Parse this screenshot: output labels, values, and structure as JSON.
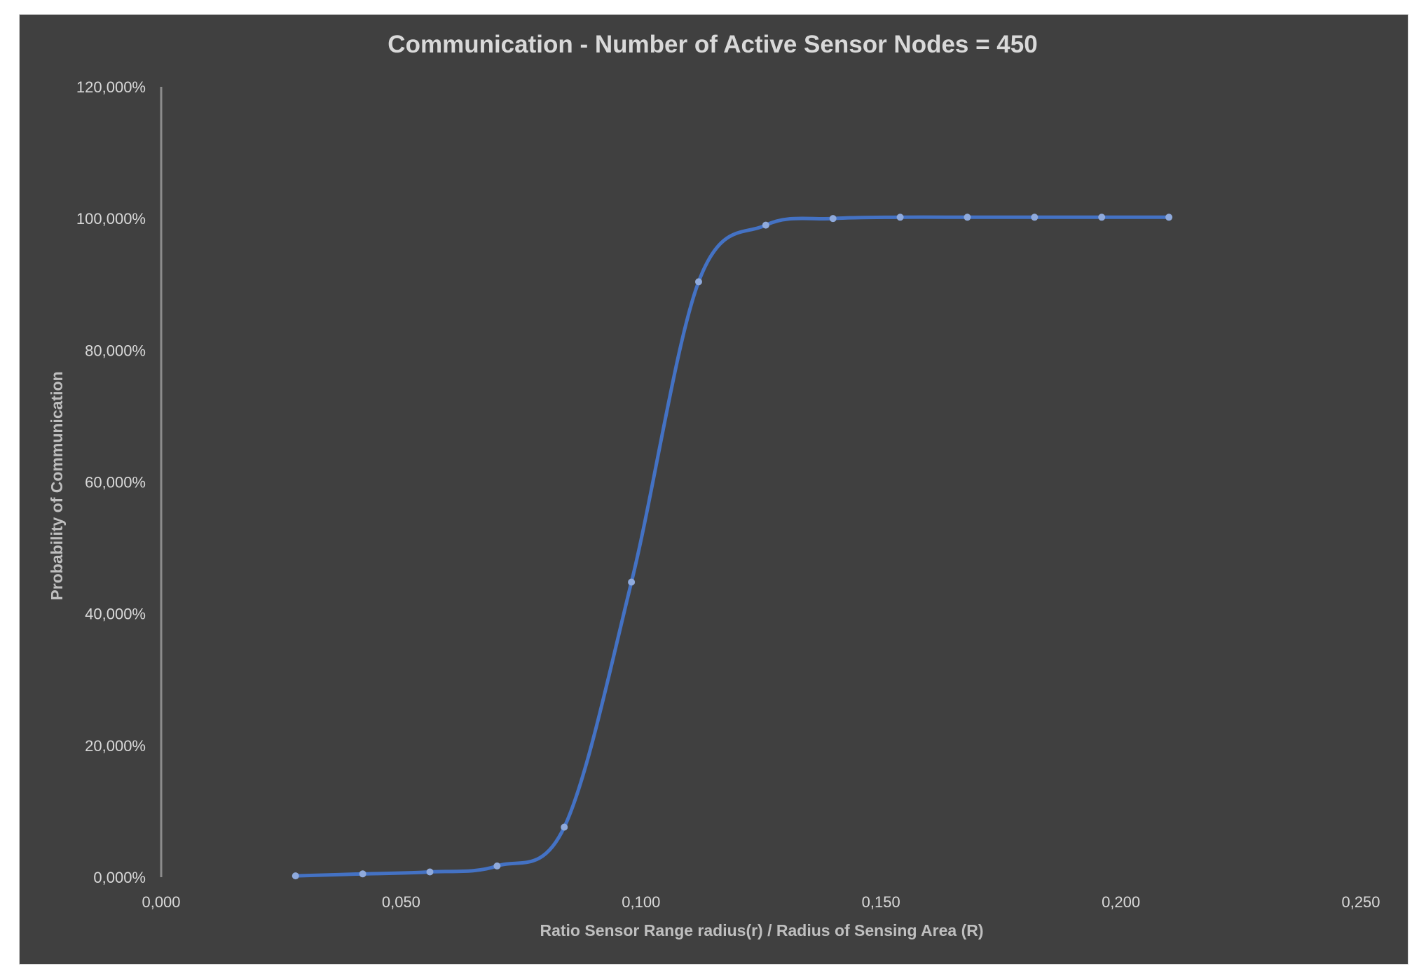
{
  "chart_data": {
    "type": "scatter",
    "title": "Communication - Number of Active Sensor Nodes = 450",
    "xlabel": "Ratio Sensor Range radius(r) / Radius of Sensing Area (R)",
    "ylabel": "Probability of Communication",
    "xlim": [
      0,
      0.25
    ],
    "ylim": [
      0,
      120
    ],
    "x_ticks": [
      "0,000",
      "0,050",
      "0,100",
      "0,150",
      "0,200",
      "0,250"
    ],
    "y_ticks": [
      "0,000%",
      "20,000%",
      "40,000%",
      "60,000%",
      "80,000%",
      "100,000%",
      "120,000%"
    ],
    "grid": false,
    "legend": "none",
    "smooth_line": true,
    "colors": {
      "background": "#404040",
      "line": "#4472c4",
      "marker": "#8faadc",
      "text": "#d9d9d9",
      "axis": "#8c8c8c"
    },
    "series": [
      {
        "x": [
          0.028,
          0.042,
          0.056,
          0.07,
          0.084,
          0.098,
          0.112,
          0.126,
          0.14,
          0.154,
          0.168,
          0.182,
          0.196,
          0.21
        ],
        "y": [
          0.2,
          0.5,
          0.8,
          1.7,
          7.6,
          44.8,
          90.4,
          99.0,
          100.0,
          100.2,
          100.2,
          100.2,
          100.2,
          100.2
        ]
      }
    ]
  }
}
